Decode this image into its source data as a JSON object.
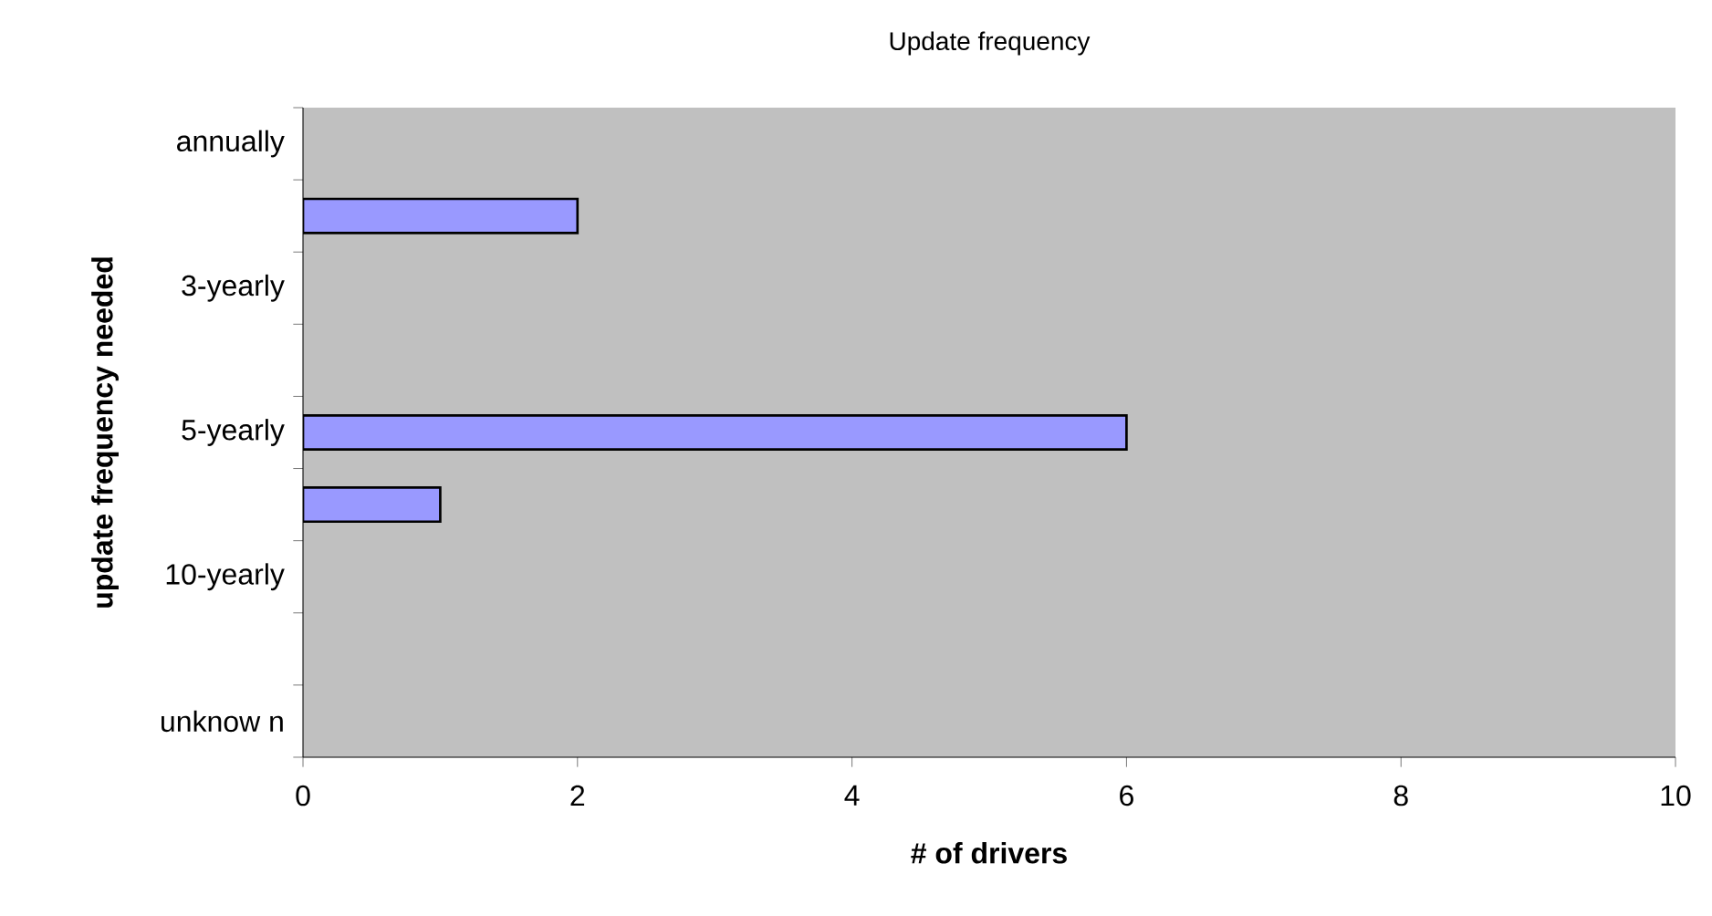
{
  "chart_data": {
    "type": "bar",
    "orientation": "horizontal",
    "title": "Update frequency",
    "xlabel": "# of drivers",
    "ylabel": "update frequency needed",
    "categories": [
      "annually",
      null,
      "3-yearly",
      null,
      "5-yearly",
      null,
      "10-yearly",
      null,
      "unknow n"
    ],
    "values": [
      null,
      2,
      null,
      null,
      6,
      1,
      null,
      null,
      null
    ],
    "color": "#9999ff",
    "xlim": [
      0,
      10
    ],
    "xticks": [
      0,
      2,
      4,
      6,
      8,
      10
    ]
  }
}
